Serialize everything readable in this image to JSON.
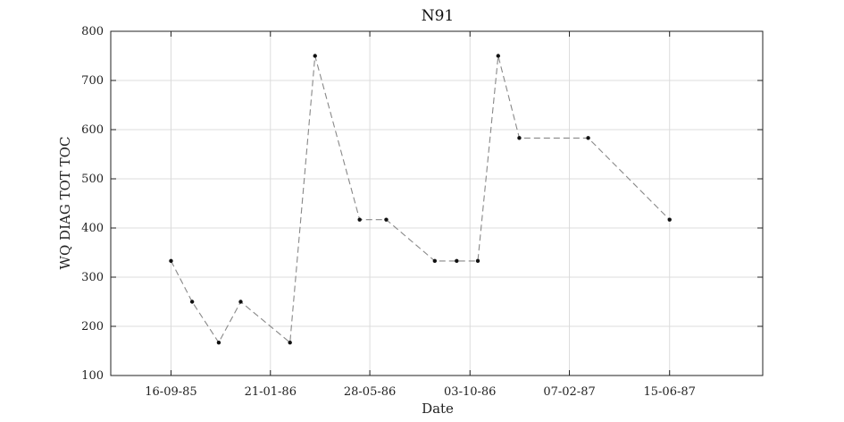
{
  "chart_data": {
    "type": "line",
    "title": "N91",
    "xlabel": "Date",
    "ylabel": "WQ DIAG TOT TOC",
    "ylim": [
      100,
      800
    ],
    "yticks": [
      100,
      200,
      300,
      400,
      500,
      600,
      700,
      800
    ],
    "xlim": [
      "1985-07-01",
      "1987-10-12"
    ],
    "xticks": [
      {
        "date": "1985-09-16",
        "label": "16-09-85"
      },
      {
        "date": "1986-01-21",
        "label": "21-01-86"
      },
      {
        "date": "1986-05-28",
        "label": "28-05-86"
      },
      {
        "date": "1986-10-03",
        "label": "03-10-86"
      },
      {
        "date": "1987-02-07",
        "label": "07-02-87"
      },
      {
        "date": "1987-06-15",
        "label": "15-06-87"
      }
    ],
    "grid": true,
    "line_style": "dashed",
    "series": [
      {
        "x": [
          "1985-09-16",
          "1985-10-13",
          "1985-11-16",
          "1985-12-14",
          "1986-02-15",
          "1986-03-19",
          "1986-05-15",
          "1986-06-18",
          "1986-08-19",
          "1986-09-16",
          "1986-10-13",
          "1986-11-08",
          "1986-12-05",
          "1987-03-03",
          "1987-06-15"
        ],
        "values": [
          333,
          250,
          167,
          250,
          167,
          750,
          417,
          417,
          333,
          333,
          333,
          750,
          583,
          583,
          417
        ]
      }
    ],
    "colors": {
      "line": "#888888",
      "marker": "#111111",
      "grid": "#dcdcdc",
      "axes": "#222222"
    }
  }
}
